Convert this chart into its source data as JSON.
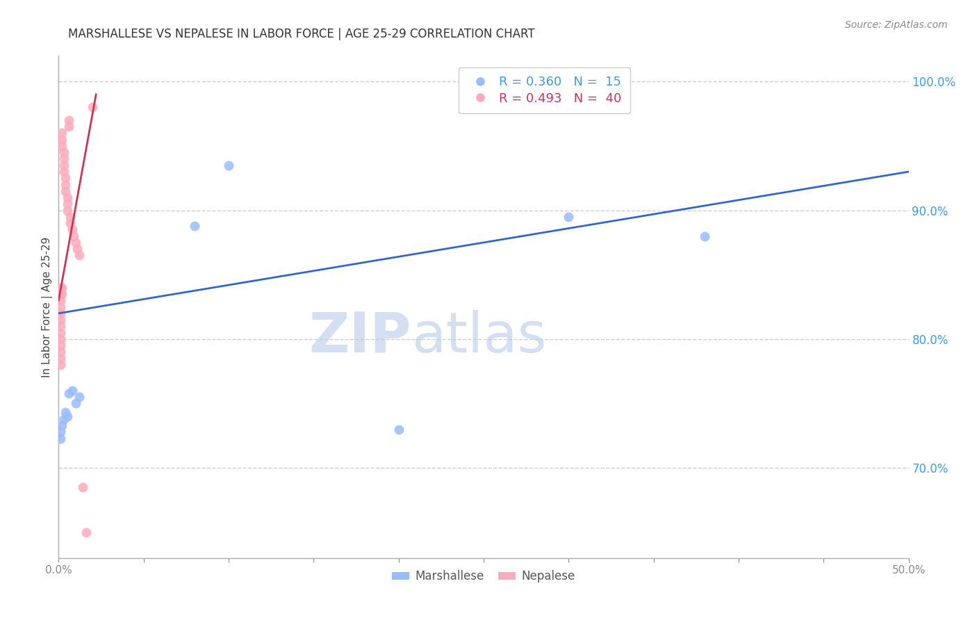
{
  "title": "MARSHALLESE VS NEPALESE IN LABOR FORCE | AGE 25-29 CORRELATION CHART",
  "source": "Source: ZipAtlas.com",
  "ylabel_label": "In Labor Force | Age 25-29",
  "xlim": [
    0.0,
    0.5
  ],
  "ylim": [
    0.63,
    1.02
  ],
  "watermark_zip": "ZIP",
  "watermark_atlas": "atlas",
  "marshallese_x": [
    0.001,
    0.001,
    0.002,
    0.003,
    0.004,
    0.005,
    0.006,
    0.008,
    0.01,
    0.012,
    0.08,
    0.1,
    0.2,
    0.3,
    0.38
  ],
  "marshallese_y": [
    0.723,
    0.728,
    0.733,
    0.738,
    0.743,
    0.74,
    0.758,
    0.76,
    0.75,
    0.755,
    0.888,
    0.935,
    0.73,
    0.895,
    0.88
  ],
  "nepalese_x": [
    0.001,
    0.001,
    0.001,
    0.001,
    0.001,
    0.001,
    0.001,
    0.001,
    0.001,
    0.001,
    0.001,
    0.001,
    0.001,
    0.002,
    0.002,
    0.002,
    0.002,
    0.002,
    0.003,
    0.003,
    0.003,
    0.003,
    0.004,
    0.004,
    0.004,
    0.005,
    0.005,
    0.005,
    0.006,
    0.006,
    0.007,
    0.007,
    0.008,
    0.009,
    0.01,
    0.011,
    0.012,
    0.014,
    0.016,
    0.02
  ],
  "nepalese_y": [
    0.84,
    0.835,
    0.83,
    0.825,
    0.82,
    0.815,
    0.81,
    0.805,
    0.8,
    0.795,
    0.79,
    0.785,
    0.78,
    0.96,
    0.955,
    0.95,
    0.84,
    0.835,
    0.945,
    0.94,
    0.935,
    0.93,
    0.925,
    0.92,
    0.915,
    0.91,
    0.905,
    0.9,
    0.97,
    0.965,
    0.895,
    0.89,
    0.885,
    0.88,
    0.875,
    0.87,
    0.865,
    0.685,
    0.65,
    0.98
  ],
  "blue_line_x": [
    0.0,
    0.5
  ],
  "blue_line_y": [
    0.82,
    0.93
  ],
  "pink_line_x": [
    0.0,
    0.022
  ],
  "pink_line_y": [
    0.83,
    0.99
  ],
  "scatter_blue": "#99bbff",
  "scatter_pink": "#ffaabb",
  "line_blue": "#3366cc",
  "line_pink": "#cc3355",
  "bg_color": "#ffffff",
  "grid_color": "#cccccc",
  "axis_tick_color": "#4499dd",
  "title_color": "#333333"
}
